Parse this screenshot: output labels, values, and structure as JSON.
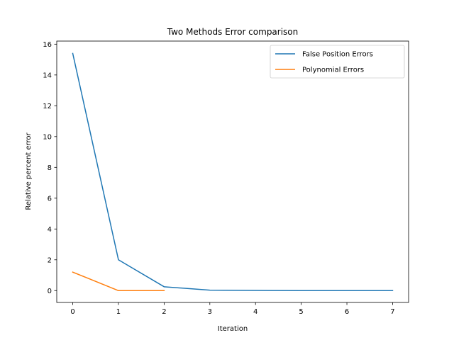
{
  "chart_data": {
    "type": "line",
    "title": "Two Methods Error comparison",
    "xlabel": "Iteration",
    "ylabel": "Relative percent error",
    "xlim": [
      -0.35,
      7.35
    ],
    "ylim": [
      -0.77,
      16.2
    ],
    "xticks": [
      0,
      1,
      2,
      3,
      4,
      5,
      6,
      7
    ],
    "yticks": [
      0,
      2,
      4,
      6,
      8,
      10,
      12,
      14,
      16
    ],
    "grid": false,
    "legend_position": "top-right",
    "series": [
      {
        "name": "False Position Errors",
        "color": "#1f77b4",
        "x": [
          0,
          1,
          2,
          3,
          4,
          5,
          6,
          7
        ],
        "y": [
          15.4,
          2.0,
          0.25,
          0.03,
          0.01,
          0.0,
          0.0,
          0.0
        ]
      },
      {
        "name": "Polynomial Errors",
        "color": "#ff7f0e",
        "x": [
          0,
          1,
          2
        ],
        "y": [
          1.2,
          0.0,
          0.0
        ]
      }
    ]
  }
}
